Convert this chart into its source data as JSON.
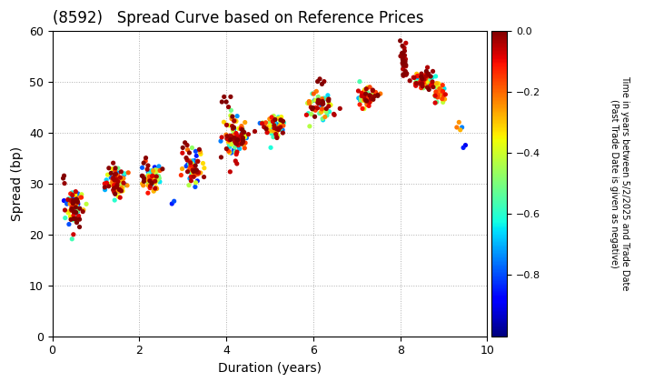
{
  "title": "(8592)   Spread Curve based on Reference Prices",
  "xlabel": "Duration (years)",
  "ylabel": "Spread (bp)",
  "xlim": [
    0,
    10
  ],
  "ylim": [
    0,
    60
  ],
  "xticks": [
    0,
    2,
    4,
    6,
    8,
    10
  ],
  "yticks": [
    0,
    10,
    20,
    30,
    40,
    50,
    60
  ],
  "colorbar_label_line1": "Time in years between 5/2/2025 and Trade Date",
  "colorbar_label_line2": "(Past Trade Date is given as negative)",
  "cbar_vmin": -1.0,
  "cbar_vmax": 0.0,
  "cbar_ticks": [
    0.0,
    -0.2,
    -0.4,
    -0.6,
    -0.8
  ],
  "background_color": "#ffffff",
  "grid_color": "#b0b0b0",
  "title_fontsize": 12,
  "axis_fontsize": 10
}
